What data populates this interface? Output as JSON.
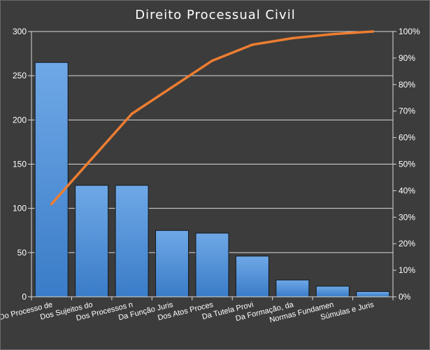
{
  "chart_data": {
    "type": "bar",
    "title": "Direito  Processual  Civil",
    "xlabel": "",
    "ylabel": "",
    "categories": [
      "Do Processo de",
      "Dos Sujeitos do",
      "Dos Processos n",
      "Da Função Juris",
      "Dos Atos Proces",
      "Da Tutela Provi",
      "Da Formação, da",
      "Normas Fundamen",
      "Súmulas e Juris"
    ],
    "series": [
      {
        "type": "bar",
        "axis": "left",
        "color": "#4f92d6",
        "values": [
          265,
          126,
          126,
          75,
          72,
          46,
          19,
          12,
          6
        ]
      },
      {
        "type": "line",
        "axis": "right",
        "color": "#ed7d31",
        "values": [
          0.35,
          0.52,
          0.69,
          0.79,
          0.89,
          0.95,
          0.975,
          0.99,
          1.0
        ]
      }
    ],
    "ylim": [
      0,
      300
    ],
    "yticks": [
      "0",
      "50",
      "100",
      "150",
      "200",
      "250",
      "300"
    ],
    "y2lim": [
      0,
      1
    ],
    "y2ticks": [
      "0%",
      "10%",
      "20%",
      "30%",
      "40%",
      "50%",
      "60%",
      "70%",
      "80%",
      "90%",
      "100%"
    ],
    "grid": true,
    "background": "#3c3c3c"
  }
}
